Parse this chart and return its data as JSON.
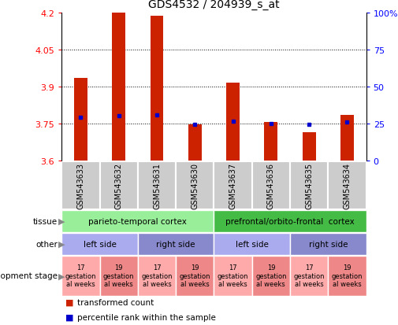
{
  "title": "GDS4532 / 204939_s_at",
  "samples": [
    "GSM543633",
    "GSM543632",
    "GSM543631",
    "GSM543630",
    "GSM543637",
    "GSM543636",
    "GSM543635",
    "GSM543634"
  ],
  "bar_tops": [
    3.935,
    4.2,
    4.185,
    3.745,
    3.915,
    3.755,
    3.715,
    3.785
  ],
  "bar_bottoms": [
    3.6,
    3.6,
    3.6,
    3.6,
    3.6,
    3.6,
    3.6,
    3.6
  ],
  "percentile_values": [
    3.775,
    3.78,
    3.785,
    3.745,
    3.76,
    3.748,
    3.745,
    3.755
  ],
  "ylim": [
    3.6,
    4.2
  ],
  "yticks": [
    3.6,
    3.75,
    3.9,
    4.05,
    4.2
  ],
  "ytick_labels": [
    "3.6",
    "3.75",
    "3.9",
    "4.05",
    "4.2"
  ],
  "right_yticks": [
    0,
    25,
    50,
    75,
    100
  ],
  "right_ytick_labels": [
    "0",
    "25",
    "50",
    "75",
    "100%"
  ],
  "bar_color": "#cc2200",
  "percentile_color": "#0000cc",
  "tissue_row": {
    "groups": [
      {
        "text": "parieto-temporal cortex",
        "start": 0,
        "end": 4,
        "color": "#99ee99"
      },
      {
        "text": "prefrontal/orbito-frontal  cortex",
        "start": 4,
        "end": 8,
        "color": "#44bb44"
      }
    ]
  },
  "other_row": {
    "groups": [
      {
        "text": "left side",
        "start": 0,
        "end": 2,
        "color": "#aaaaee"
      },
      {
        "text": "right side",
        "start": 2,
        "end": 4,
        "color": "#8888cc"
      },
      {
        "text": "left side",
        "start": 4,
        "end": 6,
        "color": "#aaaaee"
      },
      {
        "text": "right side",
        "start": 6,
        "end": 8,
        "color": "#8888cc"
      }
    ]
  },
  "dev_row": {
    "groups": [
      {
        "text": "17\ngestation\nal weeks",
        "start": 0,
        "end": 1,
        "color": "#ffaaaa"
      },
      {
        "text": "19\ngestation\nal weeks",
        "start": 1,
        "end": 2,
        "color": "#ee8888"
      },
      {
        "text": "17\ngestation\nal weeks",
        "start": 2,
        "end": 3,
        "color": "#ffaaaa"
      },
      {
        "text": "19\ngestation\nal weeks",
        "start": 3,
        "end": 4,
        "color": "#ee8888"
      },
      {
        "text": "17\ngestation\nal weeks",
        "start": 4,
        "end": 5,
        "color": "#ffaaaa"
      },
      {
        "text": "19\ngestation\nal weeks",
        "start": 5,
        "end": 6,
        "color": "#ee8888"
      },
      {
        "text": "17\ngestation\nal weeks",
        "start": 6,
        "end": 7,
        "color": "#ffaaaa"
      },
      {
        "text": "19\ngestation\nal weeks",
        "start": 7,
        "end": 8,
        "color": "#ee8888"
      }
    ]
  },
  "row_labels": [
    "tissue",
    "other",
    "development stage"
  ],
  "legend": [
    {
      "label": "transformed count",
      "color": "#cc2200"
    },
    {
      "label": "percentile rank within the sample",
      "color": "#0000cc"
    }
  ],
  "background_color": "#ffffff",
  "xticklabel_bg": "#cccccc"
}
